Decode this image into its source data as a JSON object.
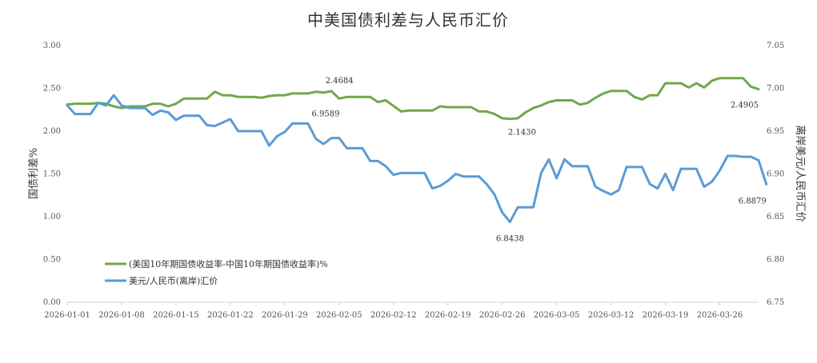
{
  "chart_data": {
    "type": "line",
    "title": "中美国债利差与人民币汇价",
    "ylabel_left": "国债利差%",
    "ylabel_right": "离岸美元/人民币汇价",
    "ylim_left": [
      0,
      3
    ],
    "ylim_right": [
      6.75,
      7.05
    ],
    "yticks_left": [
      "0.00",
      "0.50",
      "1.00",
      "1.50",
      "2.00",
      "2.50",
      "3.00"
    ],
    "yticks_right": [
      "6.75",
      "6.80",
      "6.85",
      "6.90",
      "6.95",
      "7.00",
      "7.05"
    ],
    "x_start": "2026-01-01",
    "x_end": "2026-03-31",
    "xticks": [
      "2026-01-01",
      "2026-01-08",
      "2026-01-15",
      "2026-01-22",
      "2026-01-29",
      "2026-02-05",
      "2026-02-12",
      "2026-02-19",
      "2026-02-26",
      "2026-03-05",
      "2026-03-12",
      "2026-03-19",
      "2026-03-26"
    ],
    "legend_position": "bottom-left",
    "grid": false,
    "series": [
      {
        "name": "(美国10年期国债收益率-中国10年期国债收益率)%",
        "axis": "left",
        "color": "#70a84c",
        "points": [
          [
            "2026-01-01",
            2.31
          ],
          [
            "2026-01-02",
            2.32
          ],
          [
            "2026-01-04",
            2.32
          ],
          [
            "2026-01-05",
            2.33
          ],
          [
            "2026-01-06",
            2.32
          ],
          [
            "2026-01-07",
            2.29
          ],
          [
            "2026-01-08",
            2.27
          ],
          [
            "2026-01-09",
            2.29
          ],
          [
            "2026-01-11",
            2.29
          ],
          [
            "2026-01-12",
            2.32
          ],
          [
            "2026-01-13",
            2.32
          ],
          [
            "2026-01-14",
            2.29
          ],
          [
            "2026-01-15",
            2.32
          ],
          [
            "2026-01-16",
            2.38
          ],
          [
            "2026-01-19",
            2.38
          ],
          [
            "2026-01-20",
            2.46
          ],
          [
            "2026-01-21",
            2.42
          ],
          [
            "2026-01-22",
            2.42
          ],
          [
            "2026-01-23",
            2.4
          ],
          [
            "2026-01-25",
            2.4
          ],
          [
            "2026-01-26",
            2.39
          ],
          [
            "2026-01-27",
            2.41
          ],
          [
            "2026-01-28",
            2.42
          ],
          [
            "2026-01-29",
            2.42
          ],
          [
            "2026-01-30",
            2.44
          ],
          [
            "2026-02-01",
            2.44
          ],
          [
            "2026-02-02",
            2.46
          ],
          [
            "2026-02-03",
            2.45
          ],
          [
            "2026-02-04",
            2.4684
          ],
          [
            "2026-02-05",
            2.38
          ],
          [
            "2026-02-06",
            2.4
          ],
          [
            "2026-02-09",
            2.4
          ],
          [
            "2026-02-10",
            2.34
          ],
          [
            "2026-02-11",
            2.36
          ],
          [
            "2026-02-13",
            2.23
          ],
          [
            "2026-02-14",
            2.24
          ],
          [
            "2026-02-17",
            2.24
          ],
          [
            "2026-02-18",
            2.29
          ],
          [
            "2026-02-19",
            2.28
          ],
          [
            "2026-02-22",
            2.28
          ],
          [
            "2026-02-23",
            2.23
          ],
          [
            "2026-02-24",
            2.23
          ],
          [
            "2026-02-25",
            2.2
          ],
          [
            "2026-02-26",
            2.15
          ],
          [
            "2026-02-27",
            2.143
          ],
          [
            "2026-02-28",
            2.15
          ],
          [
            "2026-03-01",
            2.22
          ],
          [
            "2026-03-02",
            2.27
          ],
          [
            "2026-03-03",
            2.3
          ],
          [
            "2026-03-04",
            2.34
          ],
          [
            "2026-03-05",
            2.36
          ],
          [
            "2026-03-07",
            2.36
          ],
          [
            "2026-03-08",
            2.31
          ],
          [
            "2026-03-09",
            2.33
          ],
          [
            "2026-03-10",
            2.39
          ],
          [
            "2026-03-11",
            2.44
          ],
          [
            "2026-03-12",
            2.47
          ],
          [
            "2026-03-14",
            2.47
          ],
          [
            "2026-03-15",
            2.4
          ],
          [
            "2026-03-16",
            2.37
          ],
          [
            "2026-03-17",
            2.42
          ],
          [
            "2026-03-18",
            2.42
          ],
          [
            "2026-03-19",
            2.56
          ],
          [
            "2026-03-21",
            2.56
          ],
          [
            "2026-03-22",
            2.51
          ],
          [
            "2026-03-23",
            2.56
          ],
          [
            "2026-03-24",
            2.51
          ],
          [
            "2026-03-25",
            2.59
          ],
          [
            "2026-03-26",
            2.62
          ],
          [
            "2026-03-29",
            2.62
          ],
          [
            "2026-03-30",
            2.52
          ],
          [
            "2026-03-31",
            2.4905
          ]
        ]
      },
      {
        "name": "美元/人民币(离岸)汇价",
        "axis": "right",
        "color": "#5b9bd5",
        "points": [
          [
            "2026-01-01",
            6.98
          ],
          [
            "2026-01-02",
            6.97
          ],
          [
            "2026-01-04",
            6.97
          ],
          [
            "2026-01-05",
            6.983
          ],
          [
            "2026-01-06",
            6.98
          ],
          [
            "2026-01-07",
            6.992
          ],
          [
            "2026-01-08",
            6.98
          ],
          [
            "2026-01-09",
            6.977
          ],
          [
            "2026-01-11",
            6.977
          ],
          [
            "2026-01-12",
            6.969
          ],
          [
            "2026-01-13",
            6.974
          ],
          [
            "2026-01-14",
            6.972
          ],
          [
            "2026-01-15",
            6.963
          ],
          [
            "2026-01-16",
            6.968
          ],
          [
            "2026-01-18",
            6.968
          ],
          [
            "2026-01-19",
            6.957
          ],
          [
            "2026-01-20",
            6.956
          ],
          [
            "2026-01-21",
            6.96
          ],
          [
            "2026-01-22",
            6.964
          ],
          [
            "2026-01-23",
            6.95
          ],
          [
            "2026-01-26",
            6.95
          ],
          [
            "2026-01-27",
            6.933
          ],
          [
            "2026-01-28",
            6.944
          ],
          [
            "2026-01-29",
            6.949
          ],
          [
            "2026-01-30",
            6.959
          ],
          [
            "2026-02-01",
            6.9589
          ],
          [
            "2026-02-02",
            6.941
          ],
          [
            "2026-02-03",
            6.935
          ],
          [
            "2026-02-04",
            6.942
          ],
          [
            "2026-02-05",
            6.942
          ],
          [
            "2026-02-06",
            6.93
          ],
          [
            "2026-02-08",
            6.93
          ],
          [
            "2026-02-09",
            6.915
          ],
          [
            "2026-02-10",
            6.915
          ],
          [
            "2026-02-11",
            6.909
          ],
          [
            "2026-02-12",
            6.899
          ],
          [
            "2026-02-13",
            6.901
          ],
          [
            "2026-02-16",
            6.901
          ],
          [
            "2026-02-17",
            6.883
          ],
          [
            "2026-02-18",
            6.886
          ],
          [
            "2026-02-19",
            6.892
          ],
          [
            "2026-02-20",
            6.9
          ],
          [
            "2026-02-21",
            6.897
          ],
          [
            "2026-02-23",
            6.897
          ],
          [
            "2026-02-24",
            6.888
          ],
          [
            "2026-02-25",
            6.876
          ],
          [
            "2026-02-26",
            6.855
          ],
          [
            "2026-02-27",
            6.8438
          ],
          [
            "2026-02-28",
            6.861
          ],
          [
            "2026-03-02",
            6.861
          ],
          [
            "2026-03-03",
            6.901
          ],
          [
            "2026-03-04",
            6.917
          ],
          [
            "2026-03-05",
            6.895
          ],
          [
            "2026-03-06",
            6.917
          ],
          [
            "2026-03-07",
            6.909
          ],
          [
            "2026-03-09",
            6.909
          ],
          [
            "2026-03-10",
            6.885
          ],
          [
            "2026-03-11",
            6.88
          ],
          [
            "2026-03-12",
            6.876
          ],
          [
            "2026-03-13",
            6.881
          ],
          [
            "2026-03-14",
            6.908
          ],
          [
            "2026-03-16",
            6.908
          ],
          [
            "2026-03-17",
            6.888
          ],
          [
            "2026-03-18",
            6.883
          ],
          [
            "2026-03-19",
            6.9
          ],
          [
            "2026-03-20",
            6.881
          ],
          [
            "2026-03-21",
            6.906
          ],
          [
            "2026-03-23",
            6.906
          ],
          [
            "2026-03-24",
            6.885
          ],
          [
            "2026-03-25",
            6.891
          ],
          [
            "2026-03-26",
            6.904
          ],
          [
            "2026-03-27",
            6.921
          ],
          [
            "2026-03-28",
            6.921
          ],
          [
            "2026-03-29",
            6.92
          ],
          [
            "2026-03-30",
            6.92
          ],
          [
            "2026-03-31",
            6.916
          ],
          [
            "2026-04-01",
            6.8879
          ]
        ]
      }
    ],
    "annotations": [
      {
        "text": "2.4684",
        "series": 0,
        "x": "2026-02-04",
        "y": 2.4684
      },
      {
        "text": "6.9589",
        "series": 1,
        "x": "2026-02-01",
        "y": 6.9589
      },
      {
        "text": "2.1430",
        "series": 0,
        "x": "2026-02-27",
        "y": 2.143
      },
      {
        "text": "6.8438",
        "series": 1,
        "x": "2026-02-27",
        "y": 6.8438
      },
      {
        "text": "2.4905",
        "series": 0,
        "x": "2026-03-31",
        "y": 2.4905
      },
      {
        "text": "6.8879",
        "series": 1,
        "x": "2026-04-01",
        "y": 6.8879
      }
    ]
  }
}
